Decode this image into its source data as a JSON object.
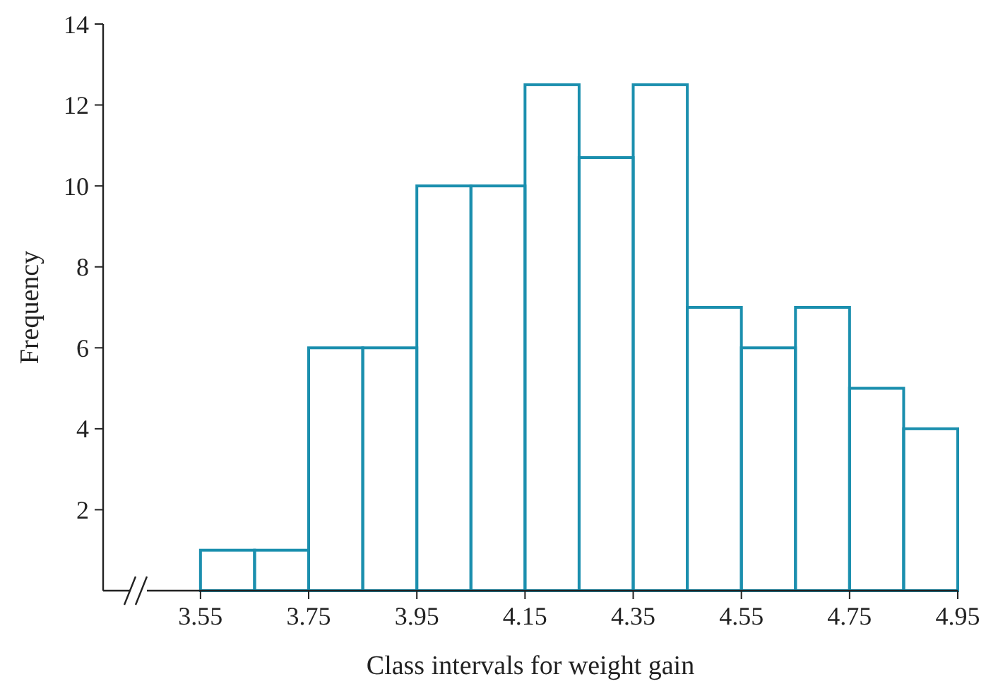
{
  "chart_data": {
    "type": "histogram",
    "xlabel": "Class intervals for weight gain",
    "ylabel": "Frequency",
    "bins": [
      3.55,
      3.65,
      3.75,
      3.85,
      3.95,
      4.05,
      4.15,
      4.25,
      4.35,
      4.45,
      4.55,
      4.65,
      4.75,
      4.85,
      4.95
    ],
    "values": [
      1,
      1,
      6,
      6,
      10,
      10,
      12.5,
      10.7,
      12.5,
      7,
      6,
      7,
      5,
      4
    ],
    "color": "#1b8fae",
    "xlim": [
      3.37,
      4.95
    ],
    "xticks": [
      3.55,
      3.75,
      3.95,
      4.15,
      4.35,
      4.55,
      4.75,
      4.95
    ],
    "ylim": [
      0,
      14
    ],
    "yticks": [
      2,
      4,
      6,
      8,
      10,
      12,
      14
    ],
    "grid": false
  }
}
